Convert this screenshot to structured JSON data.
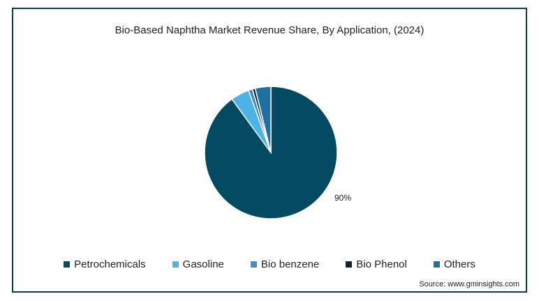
{
  "chart_data": {
    "type": "pie",
    "title": "Bio-Based Naphtha Market Revenue Share, By Application,  (2024)",
    "slices": [
      {
        "name": "Petrochemicals",
        "value": 90,
        "color": "#034a63",
        "label": "90%"
      },
      {
        "name": "Gasoline",
        "value": 4.5,
        "color": "#4bb3e6",
        "label": ""
      },
      {
        "name": "Bio benzene",
        "value": 1.0,
        "color": "#3f8fd0",
        "label": ""
      },
      {
        "name": "Bio Phenol",
        "value": 0.7,
        "color": "#0a2430",
        "label": ""
      },
      {
        "name": "Others",
        "value": 3.8,
        "color": "#1f6fa1",
        "label": ""
      }
    ],
    "legend_position": "bottom"
  },
  "source": "Source: www.gminsights.com"
}
